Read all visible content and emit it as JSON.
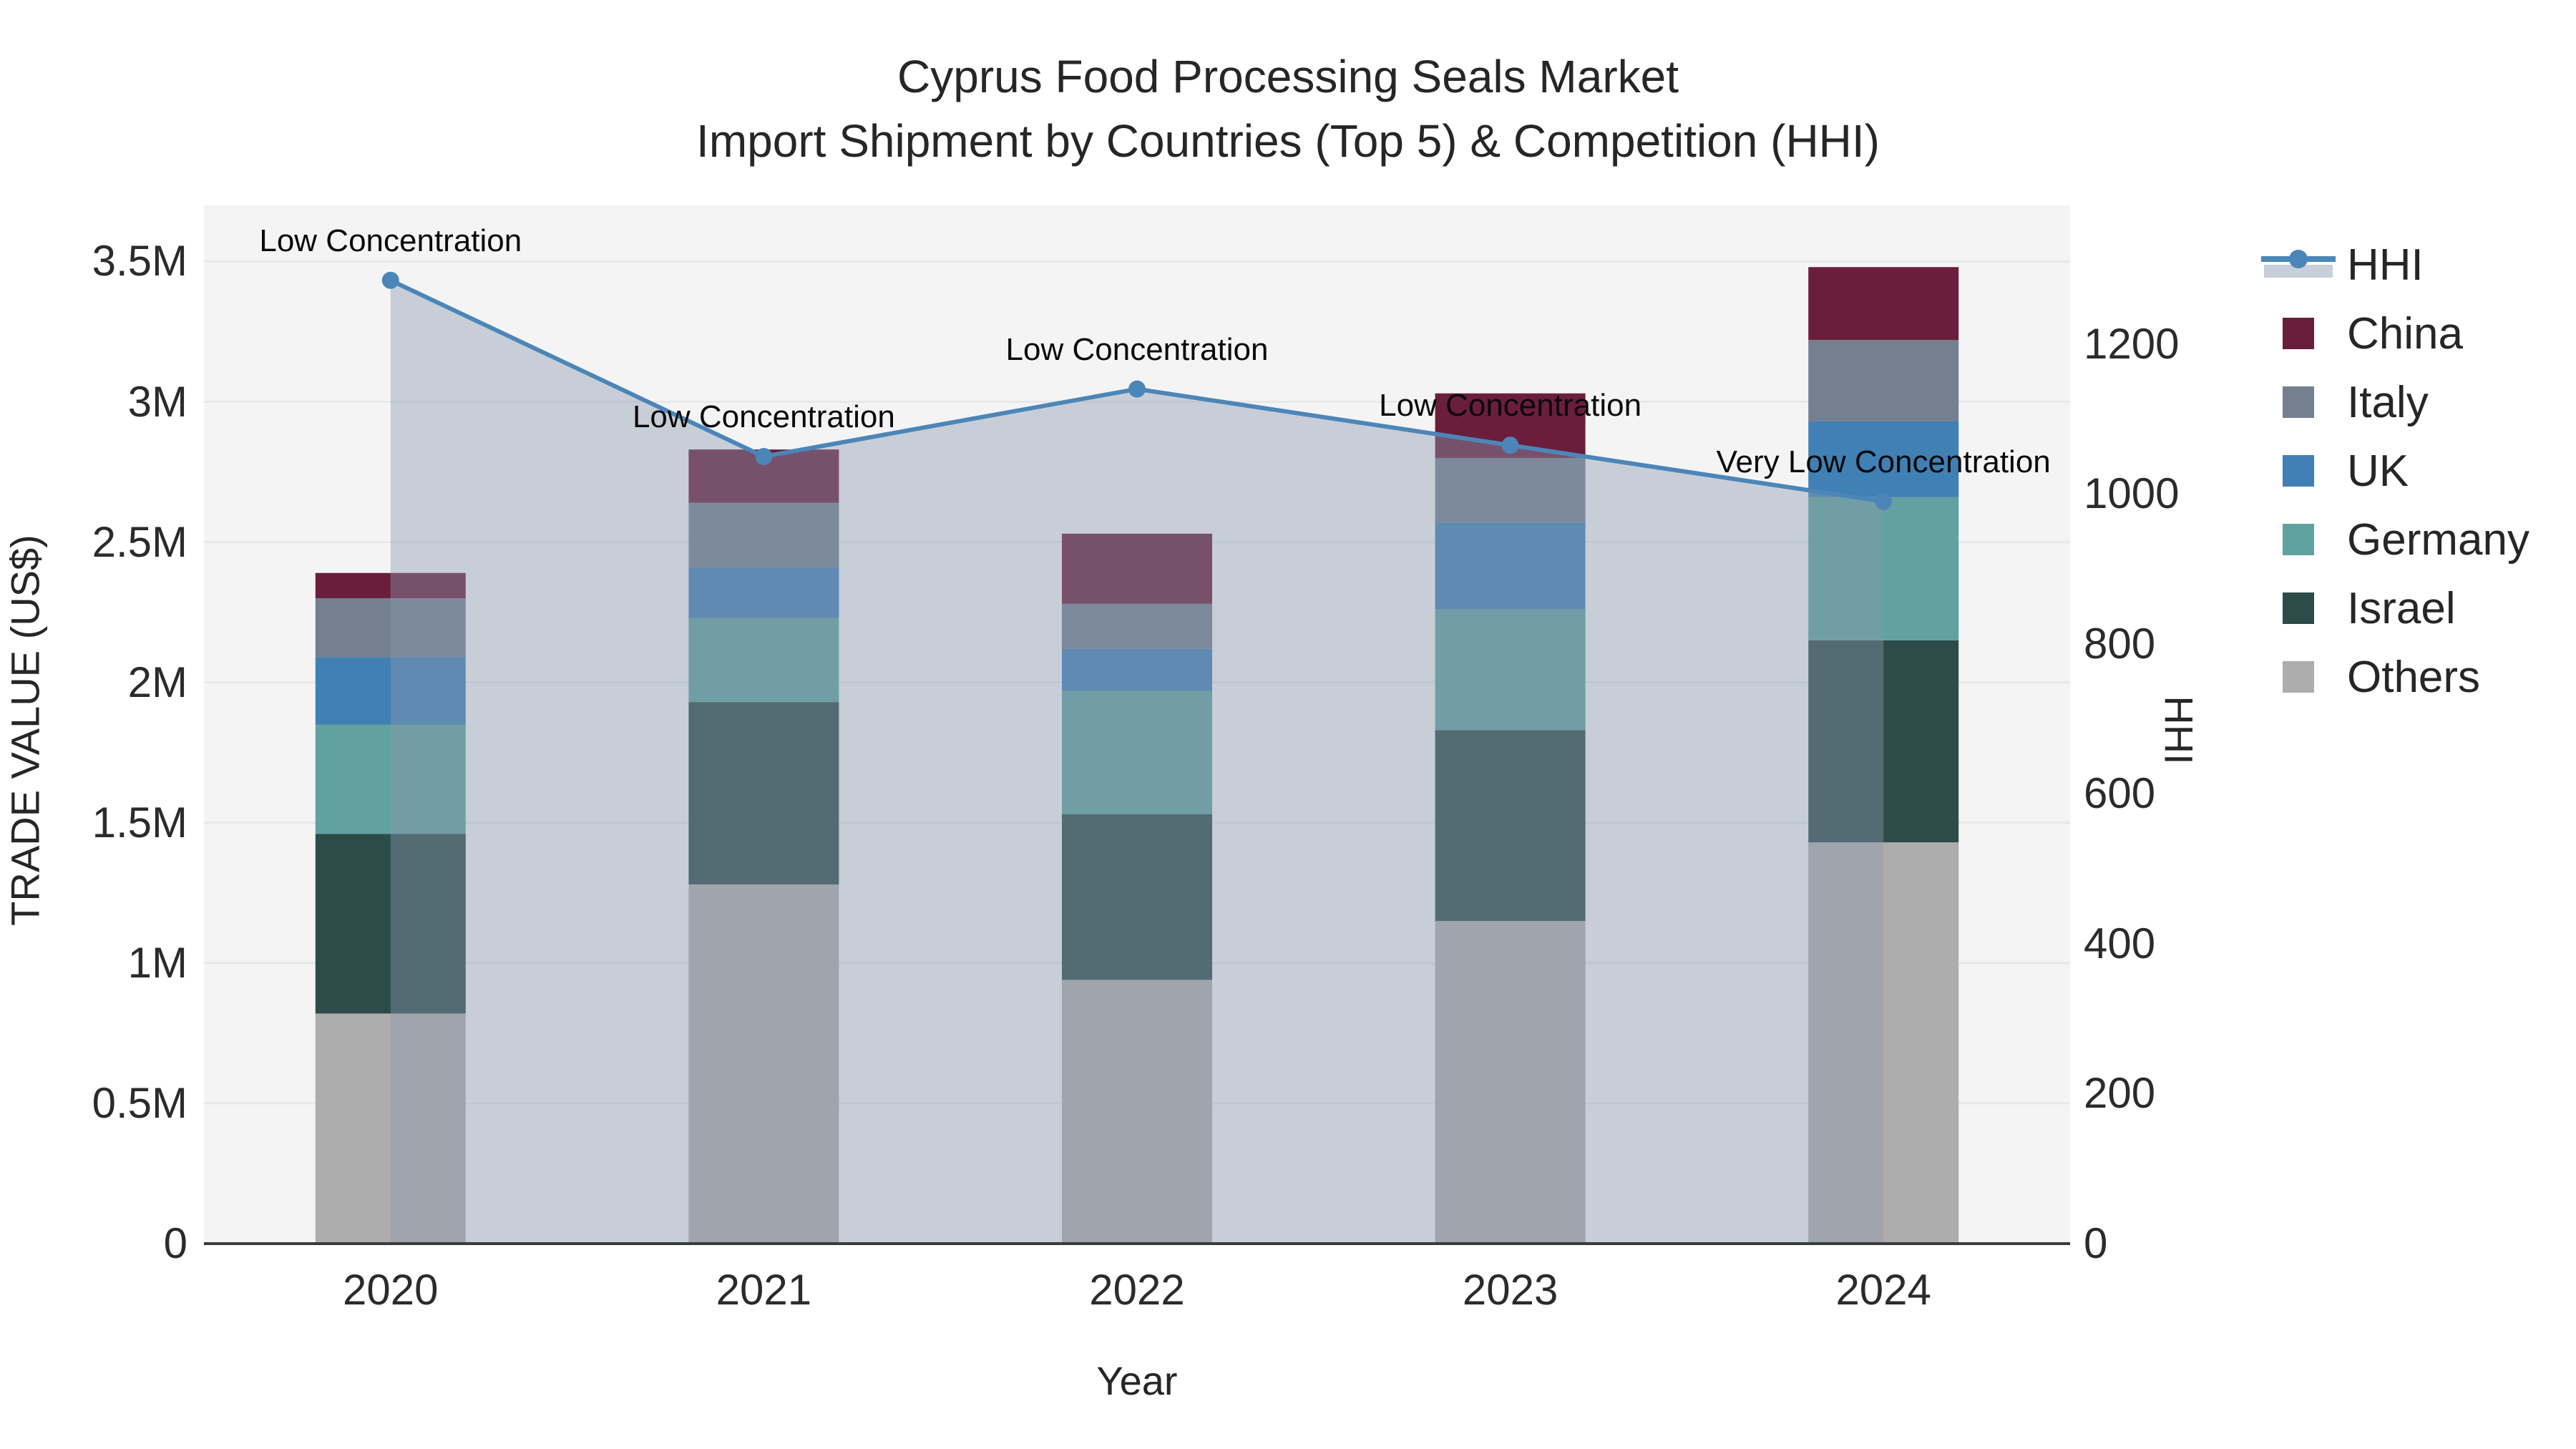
{
  "chart_data": {
    "type": "bar+line",
    "title": "Cyprus Food Processing Seals Market",
    "subtitle": "Import Shipment by Countries (Top 5) & Competition (HHI)",
    "xlabel": "Year",
    "ylabel_left": "TRADE VALUE (US$)",
    "ylabel_right": "HHI",
    "categories": [
      "2020",
      "2021",
      "2022",
      "2023",
      "2024"
    ],
    "stacked_bar_unit": "US$",
    "series": [
      {
        "name": "China",
        "color": "#6a1e3c",
        "values": [
          90000,
          190000,
          250000,
          230000,
          260000
        ]
      },
      {
        "name": "Italy",
        "color": "#74808f",
        "values": [
          210000,
          230000,
          160000,
          230000,
          290000
        ]
      },
      {
        "name": "UK",
        "color": "#4080b5",
        "values": [
          240000,
          180000,
          150000,
          310000,
          270000
        ]
      },
      {
        "name": "Germany",
        "color": "#60a29f",
        "values": [
          390000,
          300000,
          440000,
          430000,
          510000
        ]
      },
      {
        "name": "Israel",
        "color": "#2c4b49",
        "values": [
          640000,
          650000,
          590000,
          680000,
          720000
        ]
      },
      {
        "name": "Others",
        "color": "#aeadad",
        "values": [
          820000,
          1280000,
          940000,
          1150000,
          1430000
        ]
      }
    ],
    "line_series": {
      "name": "HHI",
      "color": "#4c86b8",
      "area_color": "rgba(139,152,175,0.42)",
      "legend_area_color": "#c7cfda",
      "values": [
        1285,
        1050,
        1140,
        1065,
        990
      ]
    },
    "annotations": [
      "Low Concentration",
      "Low Concentration",
      "Low Concentration",
      "Low Concentration",
      "Very Low Concentration"
    ],
    "left_axis": {
      "max": 3700000,
      "ticks": [
        {
          "v": 0,
          "label": "0"
        },
        {
          "v": 500000,
          "label": "0.5M"
        },
        {
          "v": 1000000,
          "label": "1M"
        },
        {
          "v": 1500000,
          "label": "1.5M"
        },
        {
          "v": 2000000,
          "label": "2M"
        },
        {
          "v": 2500000,
          "label": "2.5M"
        },
        {
          "v": 3000000,
          "label": "3M"
        },
        {
          "v": 3500000,
          "label": "3.5M"
        }
      ]
    },
    "right_axis": {
      "max": 1385,
      "ticks": [
        {
          "v": 0,
          "label": "0"
        },
        {
          "v": 200,
          "label": "200"
        },
        {
          "v": 400,
          "label": "400"
        },
        {
          "v": 600,
          "label": "600"
        },
        {
          "v": 800,
          "label": "800"
        },
        {
          "v": 1000,
          "label": "1000"
        },
        {
          "v": 1200,
          "label": "1200"
        }
      ]
    },
    "legend_order": [
      "HHI",
      "China",
      "Italy",
      "UK",
      "Germany",
      "Israel",
      "Others"
    ],
    "legend_position": "right",
    "grid": "on",
    "colors": {
      "plot_bg": "#f4f4f5",
      "grid": "#e6e8ea",
      "axis_line": "#3b3b3b",
      "text": "#2b2b2b",
      "annotation_text": "#0a0a0a"
    }
  }
}
